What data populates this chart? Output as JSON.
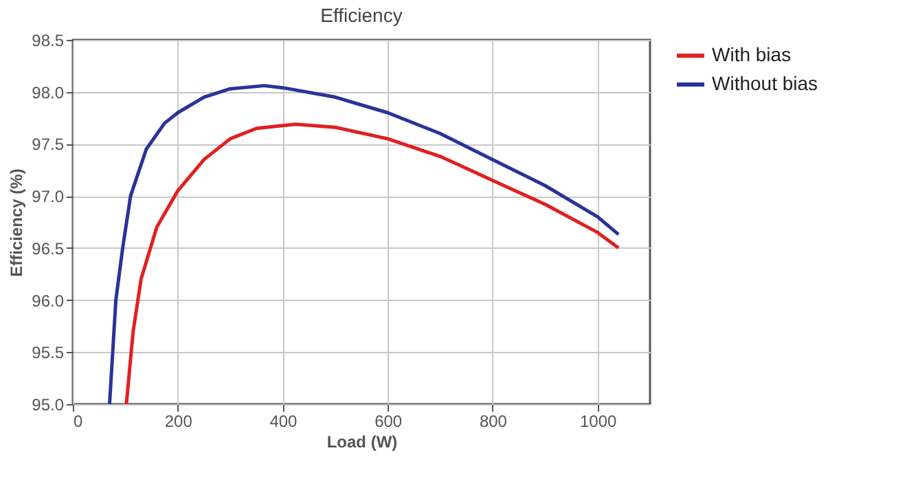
{
  "chart_data": {
    "type": "line",
    "title": "Efficiency",
    "xlabel": "Load (W)",
    "ylabel": "Efficiency (%)",
    "xlim": [
      0,
      1100
    ],
    "xticks": [
      0,
      200,
      400,
      600,
      800,
      1000
    ],
    "ylim": [
      95.0,
      98.5
    ],
    "yticks": [
      {
        "value": 95.0,
        "label": "95.0"
      },
      {
        "value": 95.5,
        "label": "95.5"
      },
      {
        "value": 96.0,
        "label": "96.0"
      },
      {
        "value": 96.5,
        "label": "96.5"
      },
      {
        "value": 97.0,
        "label": "97.0"
      },
      {
        "value": 97.5,
        "label": "97.5"
      },
      {
        "value": 98.0,
        "label": "98.0"
      },
      {
        "value": 98.5,
        "label": "98.5"
      }
    ],
    "grid": true,
    "legend": "right",
    "line_style": "solid",
    "series": [
      {
        "name": "With bias",
        "color": "#e02020",
        "x": [
          102,
          115,
          130,
          160,
          200,
          250,
          300,
          350,
          425,
          500,
          600,
          700,
          800,
          900,
          1000,
          1040
        ],
        "values": [
          95.0,
          95.7,
          96.2,
          96.7,
          97.05,
          97.35,
          97.55,
          97.65,
          97.69,
          97.66,
          97.55,
          97.38,
          97.15,
          96.92,
          96.65,
          96.5
        ]
      },
      {
        "name": "Without bias",
        "color": "#28339a",
        "x": [
          70,
          82,
          95,
          110,
          140,
          175,
          200,
          250,
          300,
          365,
          400,
          500,
          600,
          700,
          800,
          900,
          1000,
          1040
        ],
        "values": [
          95.0,
          96.0,
          96.5,
          97.0,
          97.45,
          97.7,
          97.8,
          97.95,
          98.03,
          98.06,
          98.04,
          97.95,
          97.8,
          97.6,
          97.35,
          97.1,
          96.8,
          96.63
        ]
      }
    ]
  }
}
